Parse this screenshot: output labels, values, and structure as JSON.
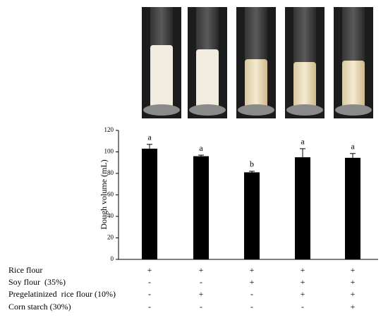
{
  "chart_data": {
    "type": "bar",
    "ylabel": "Dough volume (mL)",
    "categories": [
      null,
      null,
      null,
      null,
      null
    ],
    "values": [
      103,
      96,
      81,
      95,
      94.5
    ],
    "errors": [
      4,
      1,
      1,
      8,
      4
    ],
    "significance_letters": [
      "a",
      "a",
      "b",
      "a",
      "a"
    ],
    "color": "#000000",
    "ylim": [
      0,
      120
    ],
    "yticks": [
      0,
      20,
      40,
      60,
      80,
      100,
      120
    ]
  },
  "treatment_table": {
    "rows": [
      {
        "label": "Rice flour",
        "signs": [
          "+",
          "+",
          "+",
          "+",
          "+"
        ]
      },
      {
        "label": "Soy flour  (35%)",
        "signs": [
          "-",
          "-",
          "+",
          "+",
          "+"
        ]
      },
      {
        "label": "Pregelatinized  rice flour (10%)",
        "signs": [
          "-",
          "+",
          "-",
          "+",
          "+"
        ]
      },
      {
        "label": "Corn starch (30%)",
        "signs": [
          "-",
          "-",
          "-",
          "-",
          "+"
        ]
      }
    ]
  }
}
